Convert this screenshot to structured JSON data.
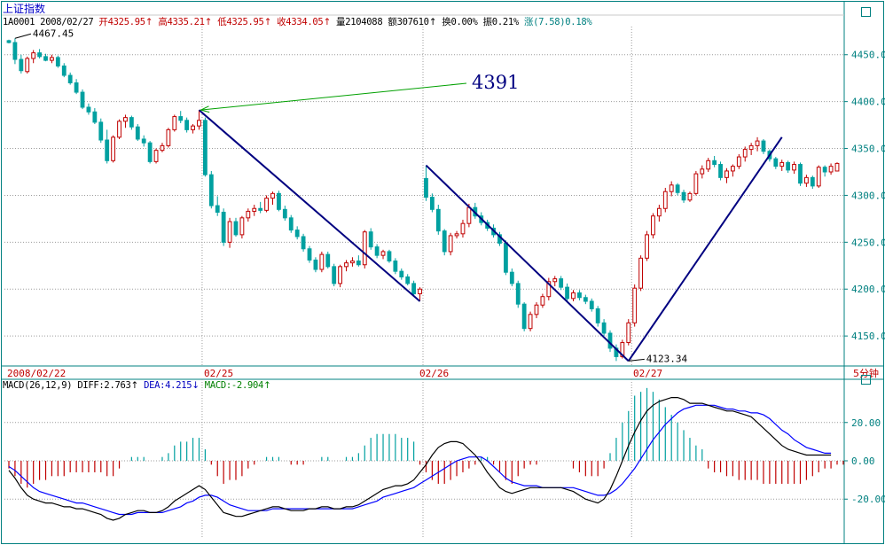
{
  "header": {
    "symbol_title": "上证指数",
    "code": "1A0001",
    "date": "2008/02/27",
    "open_label": "开",
    "open_value": "4325.95",
    "open_arrow": "↑",
    "high_label": "高",
    "high_value": "4335.21",
    "high_arrow": "↑",
    "low_label": "低",
    "low_value": "4325.95",
    "low_arrow": "↑",
    "close_label": "收",
    "close_value": "4334.05",
    "close_arrow": "↑",
    "volume_label": "量",
    "volume_value": "2104088",
    "amount_label": "额",
    "amount_value": "307610",
    "amount_arrow": "↑",
    "turnover_label": "换",
    "turnover_value": "0.00%",
    "amplitude_label": "振",
    "amplitude_value": "0.21%",
    "change_label": "涨",
    "change_value": "(7.58)",
    "change_pct": "0.18%"
  },
  "macd_header": {
    "label": "MACD(26,12,9)",
    "diff_label": "DIFF:",
    "diff_value": "2.763",
    "diff_arrow": "↑",
    "dea_label": "DEA:",
    "dea_value": "4.215",
    "dea_arrow": "↓",
    "macd_label": "MACD:",
    "macd_value": "-2.904",
    "macd_arrow": "↑"
  },
  "period_label": "5分钟",
  "colors": {
    "up": "#c00000",
    "down": "#00a0a0",
    "grid": "#9c9c9c",
    "frame": "#008080",
    "trendline": "#000080",
    "annotation_arrow": "#00a000",
    "dea": "#0000ff",
    "diff": "#000000"
  },
  "chart_data": {
    "type": "candlestick",
    "timeframe": "5分钟",
    "price_axis": {
      "ticks": [
        "4450.0",
        "4400.0",
        "4350.0",
        "4300.0",
        "4250.0",
        "4200.0",
        "4150.0"
      ],
      "range": [
        4118,
        4480
      ]
    },
    "x_tick_labels": [
      "2008/02/22",
      "02/25",
      "02/26",
      "02/27"
    ],
    "annotations": [
      {
        "text": "4467.45",
        "kind": "high-marker"
      },
      {
        "text": "4123.34",
        "kind": "low-marker"
      },
      {
        "text": "4391",
        "kind": "callout"
      }
    ],
    "candles": [
      [
        4465,
        4466,
        4462,
        4463
      ],
      [
        4463,
        4467.45,
        4440,
        4445
      ],
      [
        4445,
        4450,
        4430,
        4433
      ],
      [
        4432,
        4448,
        4430,
        4446
      ],
      [
        4446,
        4455,
        4441,
        4452
      ],
      [
        4452,
        4456,
        4446,
        4448
      ],
      [
        4448,
        4451,
        4443,
        4444
      ],
      [
        4444,
        4450,
        4441,
        4447
      ],
      [
        4447,
        4449,
        4436,
        4438
      ],
      [
        4438,
        4441,
        4426,
        4428
      ],
      [
        4428,
        4431,
        4418,
        4420
      ],
      [
        4420,
        4424,
        4408,
        4410
      ],
      [
        4410,
        4413,
        4392,
        4394
      ],
      [
        4394,
        4398,
        4386,
        4389
      ],
      [
        4389,
        4393,
        4376,
        4378
      ],
      [
        4378,
        4382,
        4356,
        4359
      ],
      [
        4359,
        4370,
        4334,
        4337
      ],
      [
        4337,
        4364,
        4335,
        4362
      ],
      [
        4362,
        4381,
        4360,
        4379
      ],
      [
        4379,
        4386,
        4372,
        4383
      ],
      [
        4383,
        4385,
        4370,
        4373
      ],
      [
        4373,
        4376,
        4358,
        4360
      ],
      [
        4360,
        4364,
        4352,
        4356
      ],
      [
        4356,
        4358,
        4334,
        4336
      ],
      [
        4336,
        4350,
        4334,
        4348
      ],
      [
        4348,
        4356,
        4346,
        4353
      ],
      [
        4353,
        4372,
        4351,
        4370
      ],
      [
        4370,
        4386,
        4368,
        4384
      ],
      [
        4384,
        4390,
        4377,
        4380
      ],
      [
        4380,
        4383,
        4367,
        4370
      ],
      [
        4370,
        4376,
        4366,
        4374
      ],
      [
        4374,
        4391,
        4370,
        4380
      ],
      [
        4380,
        4383,
        4320,
        4322
      ],
      [
        4322,
        4326,
        4286,
        4289
      ],
      [
        4289,
        4299,
        4278,
        4282
      ],
      [
        4282,
        4286,
        4246,
        4250
      ],
      [
        4250,
        4276,
        4244,
        4272
      ],
      [
        4272,
        4276,
        4256,
        4258
      ],
      [
        4258,
        4278,
        4254,
        4276
      ],
      [
        4276,
        4286,
        4272,
        4283
      ],
      [
        4283,
        4290,
        4278,
        4286
      ],
      [
        4286,
        4293,
        4281,
        4284
      ],
      [
        4284,
        4300,
        4282,
        4297
      ],
      [
        4297,
        4304,
        4290,
        4302
      ],
      [
        4302,
        4305,
        4283,
        4285
      ],
      [
        4285,
        4289,
        4273,
        4276
      ],
      [
        4276,
        4279,
        4260,
        4263
      ],
      [
        4263,
        4267,
        4253,
        4256
      ],
      [
        4256,
        4259,
        4240,
        4243
      ],
      [
        4243,
        4246,
        4228,
        4231
      ],
      [
        4231,
        4234,
        4218,
        4221
      ],
      [
        4221,
        4240,
        4218,
        4237
      ],
      [
        4237,
        4240,
        4222,
        4224
      ],
      [
        4224,
        4227,
        4203,
        4206
      ],
      [
        4206,
        4226,
        4202,
        4224
      ],
      [
        4224,
        4231,
        4219,
        4228
      ],
      [
        4228,
        4234,
        4224,
        4230
      ],
      [
        4230,
        4236,
        4224,
        4226
      ],
      [
        4226,
        4263,
        4222,
        4261
      ],
      [
        4261,
        4265,
        4242,
        4245
      ],
      [
        4245,
        4248,
        4233,
        4236
      ],
      [
        4236,
        4242,
        4232,
        4240
      ],
      [
        4240,
        4242,
        4228,
        4230
      ],
      [
        4230,
        4233,
        4216,
        4219
      ],
      [
        4219,
        4222,
        4210,
        4213
      ],
      [
        4213,
        4216,
        4204,
        4206
      ],
      [
        4206,
        4209,
        4192,
        4195
      ],
      [
        4195,
        4202,
        4187,
        4200
      ],
      [
        4318,
        4332,
        4294,
        4298
      ],
      [
        4298,
        4302,
        4282,
        4285
      ],
      [
        4285,
        4290,
        4258,
        4262
      ],
      [
        4262,
        4264,
        4236,
        4240
      ],
      [
        4240,
        4260,
        4236,
        4257
      ],
      [
        4257,
        4262,
        4254,
        4259
      ],
      [
        4259,
        4274,
        4255,
        4270
      ],
      [
        4270,
        4291,
        4266,
        4287
      ],
      [
        4287,
        4292,
        4275,
        4278
      ],
      [
        4278,
        4282,
        4268,
        4271
      ],
      [
        4271,
        4274,
        4262,
        4265
      ],
      [
        4265,
        4269,
        4255,
        4258
      ],
      [
        4258,
        4261,
        4246,
        4249
      ],
      [
        4249,
        4252,
        4215,
        4218
      ],
      [
        4218,
        4222,
        4203,
        4206
      ],
      [
        4206,
        4209,
        4180,
        4184
      ],
      [
        4184,
        4186,
        4155,
        4158
      ],
      [
        4158,
        4176,
        4155,
        4173
      ],
      [
        4173,
        4186,
        4169,
        4183
      ],
      [
        4183,
        4195,
        4180,
        4192
      ],
      [
        4192,
        4212,
        4188,
        4208
      ],
      [
        4208,
        4214,
        4203,
        4211
      ],
      [
        4211,
        4214,
        4199,
        4202
      ],
      [
        4202,
        4206,
        4186,
        4190
      ],
      [
        4190,
        4199,
        4187,
        4196
      ],
      [
        4196,
        4199,
        4188,
        4191
      ],
      [
        4191,
        4194,
        4184,
        4187
      ],
      [
        4187,
        4190,
        4176,
        4179
      ],
      [
        4179,
        4182,
        4160,
        4164
      ],
      [
        4164,
        4168,
        4150,
        4153
      ],
      [
        4153,
        4156,
        4133,
        4137
      ],
      [
        4137,
        4141,
        4123.34,
        4128
      ],
      [
        4128,
        4146,
        4126,
        4143
      ],
      [
        4143,
        4168,
        4140,
        4164
      ],
      [
        4164,
        4205,
        4160,
        4201
      ],
      [
        4201,
        4236,
        4198,
        4233
      ],
      [
        4233,
        4262,
        4230,
        4258
      ],
      [
        4258,
        4281,
        4254,
        4278
      ],
      [
        4278,
        4290,
        4272,
        4286
      ],
      [
        4286,
        4308,
        4282,
        4304
      ],
      [
        4304,
        4315,
        4299,
        4311
      ],
      [
        4311,
        4313,
        4300,
        4303
      ],
      [
        4303,
        4306,
        4292,
        4295
      ],
      [
        4295,
        4304,
        4293,
        4302
      ],
      [
        4302,
        4326,
        4300,
        4323
      ],
      [
        4323,
        4332,
        4318,
        4328
      ],
      [
        4328,
        4340,
        4325,
        4337
      ],
      [
        4337,
        4342,
        4330,
        4333
      ],
      [
        4333,
        4336,
        4316,
        4319
      ],
      [
        4319,
        4329,
        4313,
        4326
      ],
      [
        4326,
        4333,
        4320,
        4331
      ],
      [
        4331,
        4344,
        4328,
        4341
      ],
      [
        4341,
        4352,
        4336,
        4349
      ],
      [
        4349,
        4356,
        4343,
        4353
      ],
      [
        4353,
        4362,
        4347,
        4358
      ],
      [
        4358,
        4360,
        4344,
        4347
      ],
      [
        4347,
        4349,
        4336,
        4339
      ],
      [
        4339,
        4341,
        4328,
        4331
      ],
      [
        4331,
        4338,
        4326,
        4335
      ],
      [
        4335,
        4337,
        4324,
        4327
      ],
      [
        4327,
        4336,
        4323,
        4333
      ],
      [
        4333,
        4335,
        4310,
        4313
      ],
      [
        4313,
        4322,
        4309,
        4319
      ],
      [
        4319,
        4321,
        4307,
        4310
      ],
      [
        4310,
        4332,
        4308,
        4330
      ],
      [
        4330,
        4332,
        4320,
        4325
      ],
      [
        4325,
        4334,
        4322,
        4331
      ],
      [
        4325.95,
        4335.21,
        4325.95,
        4334.05
      ]
    ],
    "macd": {
      "y_ticks": [
        "20.00",
        "0.00",
        "-20.00"
      ],
      "y_range": [
        -37,
        37
      ],
      "series": [
        {
          "name": "DIFF",
          "values": [
            -5,
            -9,
            -14,
            -18,
            -20,
            -21,
            -22,
            -22,
            -23,
            -24,
            -24,
            -25,
            -25,
            -26,
            -27,
            -28,
            -30,
            -31,
            -30,
            -28,
            -27,
            -26,
            -26,
            -27,
            -27,
            -26,
            -24,
            -21,
            -19,
            -17,
            -15,
            -13,
            -15,
            -19,
            -23,
            -27,
            -28,
            -29,
            -29,
            -28,
            -27,
            -26,
            -25,
            -24,
            -24,
            -25,
            -26,
            -26,
            -26,
            -25,
            -25,
            -24,
            -24,
            -25,
            -25,
            -24,
            -24,
            -23,
            -21,
            -19,
            -17,
            -15,
            -14,
            -13,
            -13,
            -12,
            -10,
            -6,
            -2,
            3,
            7,
            9,
            10,
            10,
            9,
            6,
            3,
            -1,
            -6,
            -10,
            -14,
            -16,
            -17,
            -16,
            -15,
            -14,
            -14,
            -14,
            -14,
            -14,
            -14,
            -15,
            -16,
            -18,
            -20,
            -21,
            -22,
            -20,
            -15,
            -8,
            0,
            8,
            15,
            21,
            26,
            29,
            31,
            32,
            33,
            33,
            32,
            30,
            30,
            30,
            29,
            28,
            27,
            26,
            26,
            25,
            24,
            23,
            20,
            17,
            14,
            11,
            8,
            6,
            5,
            4,
            3,
            3,
            3,
            3,
            3
          ]
        },
        {
          "name": "DEA",
          "values": [
            -3,
            -5,
            -8,
            -11,
            -14,
            -16,
            -17,
            -18,
            -19,
            -20,
            -21,
            -22,
            -22,
            -23,
            -24,
            -25,
            -26,
            -27,
            -28,
            -28,
            -28,
            -27,
            -27,
            -27,
            -27,
            -27,
            -26,
            -25,
            -24,
            -22,
            -21,
            -19,
            -18,
            -18,
            -19,
            -21,
            -23,
            -24,
            -25,
            -26,
            -26,
            -26,
            -26,
            -25,
            -25,
            -25,
            -25,
            -25,
            -25,
            -25,
            -25,
            -25,
            -25,
            -25,
            -25,
            -25,
            -25,
            -24,
            -23,
            -22,
            -21,
            -19,
            -18,
            -17,
            -16,
            -15,
            -14,
            -12,
            -10,
            -8,
            -6,
            -4,
            -2,
            0,
            1,
            2,
            2,
            2,
            0,
            -3,
            -6,
            -9,
            -11,
            -12,
            -13,
            -13,
            -13,
            -14,
            -14,
            -14,
            -14,
            -14,
            -14,
            -15,
            -16,
            -17,
            -18,
            -18,
            -17,
            -15,
            -12,
            -8,
            -4,
            1,
            6,
            11,
            15,
            19,
            22,
            25,
            27,
            28,
            29,
            29,
            29,
            29,
            28,
            27,
            27,
            26,
            26,
            25,
            25,
            24,
            22,
            19,
            16,
            14,
            11,
            9,
            7,
            6,
            5,
            4,
            4
          ]
        },
        {
          "name": "MACD",
          "values": [
            -4,
            -8,
            -12,
            -14,
            -12,
            -10,
            -10,
            -8,
            -8,
            -8,
            -6,
            -6,
            -6,
            -6,
            -6,
            -6,
            -8,
            -8,
            -4,
            0,
            2,
            2,
            2,
            0,
            0,
            2,
            4,
            8,
            10,
            10,
            12,
            12,
            6,
            -2,
            -8,
            -12,
            -10,
            -10,
            -8,
            -4,
            -2,
            0,
            2,
            2,
            2,
            0,
            -2,
            -2,
            -2,
            0,
            0,
            2,
            2,
            0,
            0,
            2,
            2,
            4,
            8,
            12,
            14,
            14,
            14,
            14,
            12,
            12,
            10,
            -2,
            -6,
            -10,
            -12,
            -12,
            -10,
            -8,
            -6,
            -4,
            -2,
            2,
            2,
            -2,
            -6,
            -10,
            -12,
            -8,
            -4,
            -2,
            -2,
            0,
            0,
            0,
            0,
            0,
            -4,
            -6,
            -8,
            -8,
            -8,
            -4,
            4,
            12,
            20,
            26,
            34,
            36,
            38,
            36,
            32,
            28,
            24,
            20,
            16,
            12,
            8,
            6,
            -4,
            -6,
            -6,
            -8,
            -8,
            -10,
            -10,
            -10,
            -10,
            -12,
            -12,
            -12,
            -12,
            -12,
            -12,
            -12,
            -10,
            -8,
            -6,
            -4,
            -4,
            -2,
            -2
          ]
        }
      ]
    }
  }
}
